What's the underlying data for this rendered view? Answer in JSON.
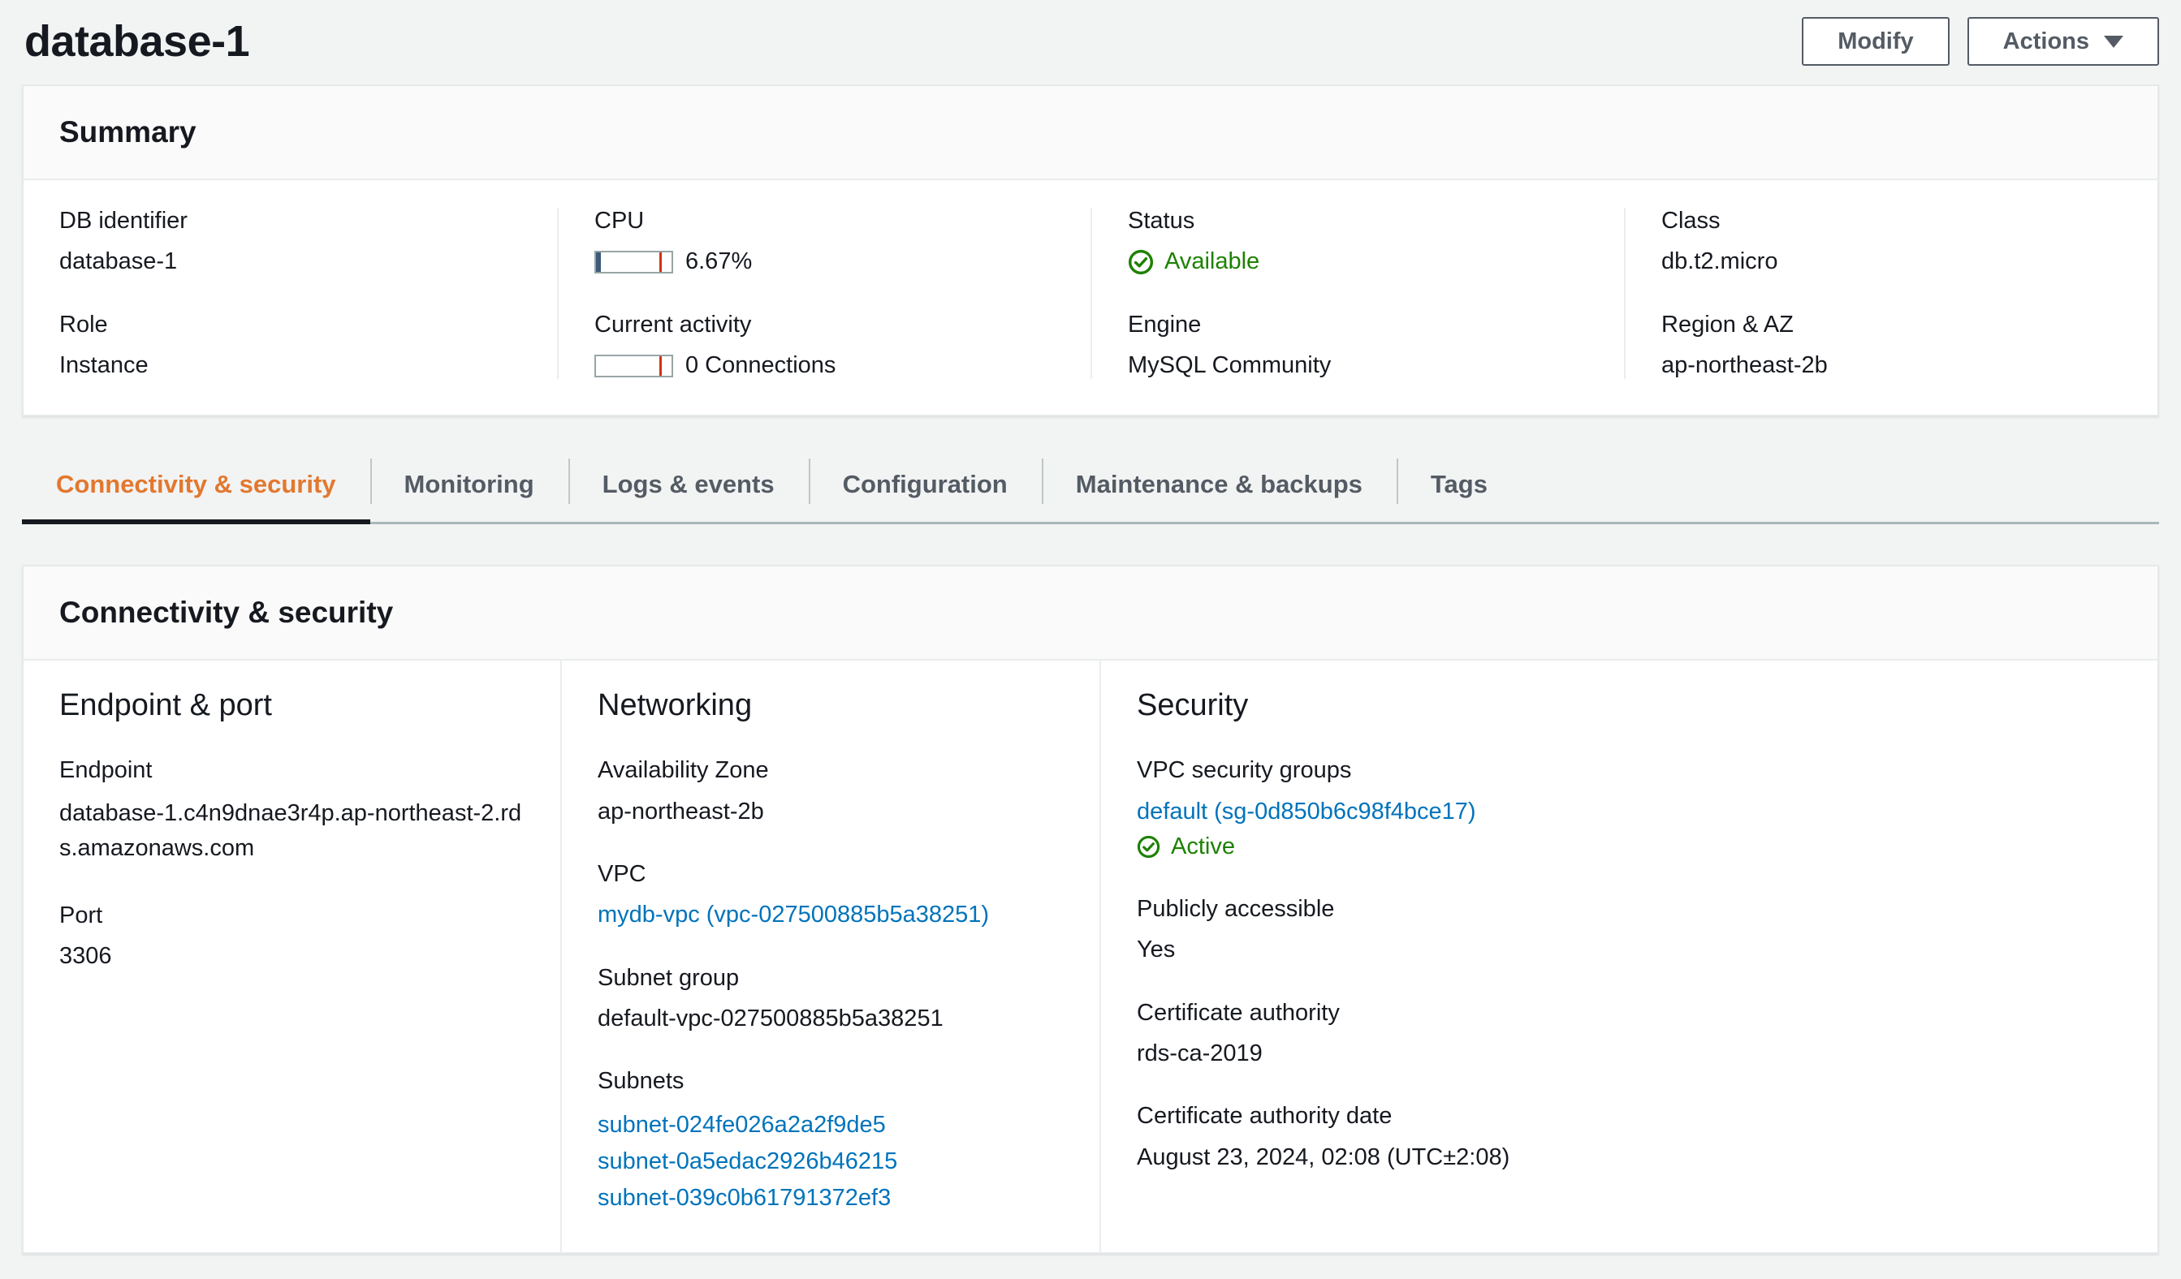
{
  "page": {
    "title": "database-1",
    "modify_label": "Modify",
    "actions_label": "Actions"
  },
  "summary": {
    "header": "Summary",
    "fields": {
      "db_identifier": {
        "label": "DB identifier",
        "value": "database-1"
      },
      "role": {
        "label": "Role",
        "value": "Instance"
      },
      "cpu": {
        "label": "CPU",
        "value": "6.67%",
        "percent": 6.67,
        "marker_percent": 84
      },
      "current_activity": {
        "label": "Current activity",
        "value": "0 Connections",
        "percent": 0,
        "marker_percent": 84
      },
      "status": {
        "label": "Status",
        "value": "Available"
      },
      "engine": {
        "label": "Engine",
        "value": "MySQL Community"
      },
      "class": {
        "label": "Class",
        "value": "db.t2.micro"
      },
      "region_az": {
        "label": "Region & AZ",
        "value": "ap-northeast-2b"
      }
    }
  },
  "tabs": [
    {
      "label": "Connectivity & security",
      "active": true
    },
    {
      "label": "Monitoring",
      "active": false
    },
    {
      "label": "Logs & events",
      "active": false
    },
    {
      "label": "Configuration",
      "active": false
    },
    {
      "label": "Maintenance & backups",
      "active": false
    },
    {
      "label": "Tags",
      "active": false
    }
  ],
  "connectivity": {
    "header": "Connectivity & security",
    "endpoint_port": {
      "title": "Endpoint & port",
      "endpoint_label": "Endpoint",
      "endpoint_value": "database-1.c4n9dnae3r4p.ap-northeast-2.rds.amazonaws.com",
      "port_label": "Port",
      "port_value": "3306"
    },
    "networking": {
      "title": "Networking",
      "az_label": "Availability Zone",
      "az_value": "ap-northeast-2b",
      "vpc_label": "VPC",
      "vpc_link": "mydb-vpc (vpc-027500885b5a38251)",
      "subnet_group_label": "Subnet group",
      "subnet_group_value": "default-vpc-027500885b5a38251",
      "subnets_label": "Subnets",
      "subnets": [
        "subnet-024fe026a2a2f9de5",
        "subnet-0a5edac2926b46215",
        "subnet-039c0b61791372ef3"
      ]
    },
    "security": {
      "title": "Security",
      "sg_label": "VPC security groups",
      "sg_link": "default (sg-0d850b6c98f4bce17)",
      "sg_status": "Active",
      "public_label": "Publicly accessible",
      "public_value": "Yes",
      "ca_label": "Certificate authority",
      "ca_value": "rds-ca-2019",
      "ca_date_label": "Certificate authority date",
      "ca_date_value": "August 23, 2024, 02:08 (UTC±2:08)"
    }
  },
  "colors": {
    "accent_orange": "#e2782f",
    "link_blue": "#0073bb",
    "status_green": "#1d8102",
    "meter_fill_blue": "#3e5a7a",
    "meter_marker_red": "#d13212",
    "button_gray": "#545b64",
    "page_bg": "#f2f3f3"
  }
}
